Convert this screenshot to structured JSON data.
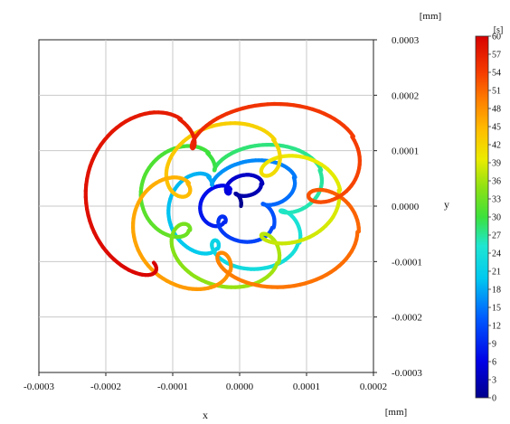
{
  "chart_data": {
    "type": "scatter",
    "title": "",
    "xlabel": "x",
    "ylabel": "y",
    "x_unit": "[mm]",
    "y_unit": "[mm]",
    "xlim": [
      -0.0003,
      0.0002
    ],
    "ylim": [
      -0.0003,
      0.0003
    ],
    "xticks": [
      -0.0003,
      -0.0002,
      -0.0001,
      0.0,
      0.0001,
      0.0002
    ],
    "xtick_labels": [
      "-0.0003",
      "-0.0002",
      "-0.0001",
      "0.0000",
      "0.0001",
      "0.0002"
    ],
    "yticks": [
      0.0003,
      0.0002,
      0.0001,
      0.0,
      -0.0001,
      -0.0002,
      -0.0003
    ],
    "ytick_labels": [
      "0.0003",
      "0.0002",
      "0.0001",
      "0.0000",
      "-0.0001",
      "-0.0002",
      "-0.0003"
    ],
    "grid": true,
    "legend": "none",
    "colorbar": {
      "unit": "[s]",
      "min": 0,
      "max": 60,
      "ticks": [
        60,
        57,
        54,
        51,
        48,
        45,
        42,
        39,
        36,
        33,
        30,
        27,
        24,
        21,
        18,
        15,
        12,
        9,
        6,
        3,
        0
      ],
      "tick_labels": [
        "60",
        "57",
        "54",
        "51",
        "48",
        "45",
        "42",
        "39",
        "36",
        "33",
        "30",
        "27",
        "24",
        "21",
        "18",
        "15",
        "12",
        "9",
        "6",
        "3",
        "0"
      ]
    },
    "trajectory": {
      "time_range": [
        0,
        60
      ],
      "points": [
        {
          "t": 0.0,
          "x": -1e-05,
          "y": 0.0
        },
        {
          "t": 3.0,
          "x": 2e-05,
          "y": 4e-05
        },
        {
          "t": 6.0,
          "x": -3e-05,
          "y": 3e-05
        },
        {
          "t": 9.0,
          "x": -4e-05,
          "y": -3e-05
        },
        {
          "t": 12.0,
          "x": 3e-05,
          "y": -4e-05
        },
        {
          "t": 15.0,
          "x": 6e-05,
          "y": 5e-05
        },
        {
          "t": 18.0,
          "x": -7e-05,
          "y": 5e-05
        },
        {
          "t": 21.0,
          "x": -6e-05,
          "y": -8e-05
        },
        {
          "t": 24.0,
          "x": 6e-05,
          "y": -7e-05
        },
        {
          "t": 27.0,
          "x": 9e-05,
          "y": 6e-05
        },
        {
          "t": 30.0,
          "x": -8e-05,
          "y": 9e-05
        },
        {
          "t": 33.0,
          "x": -0.00011,
          "y": -5e-05
        },
        {
          "t": 36.0,
          "x": 2e-05,
          "y": -0.00011
        },
        {
          "t": 39.0,
          "x": 0.00011,
          "y": 2e-05
        },
        {
          "t": 42.0,
          "x": 1e-05,
          "y": 0.00011
        },
        {
          "t": 45.0,
          "x": -0.00012,
          "y": 3e-05
        },
        {
          "t": 48.0,
          "x": -6e-05,
          "y": -0.00013
        },
        {
          "t": 51.0,
          "x": 0.00013,
          "y": -6e-05
        },
        {
          "t": 54.0,
          "x": 0.00012,
          "y": 0.00011
        },
        {
          "t": 57.0,
          "x": -0.00014,
          "y": 0.00014
        },
        {
          "t": 60.0,
          "x": -0.00018,
          "y": -0.00012
        }
      ]
    }
  }
}
